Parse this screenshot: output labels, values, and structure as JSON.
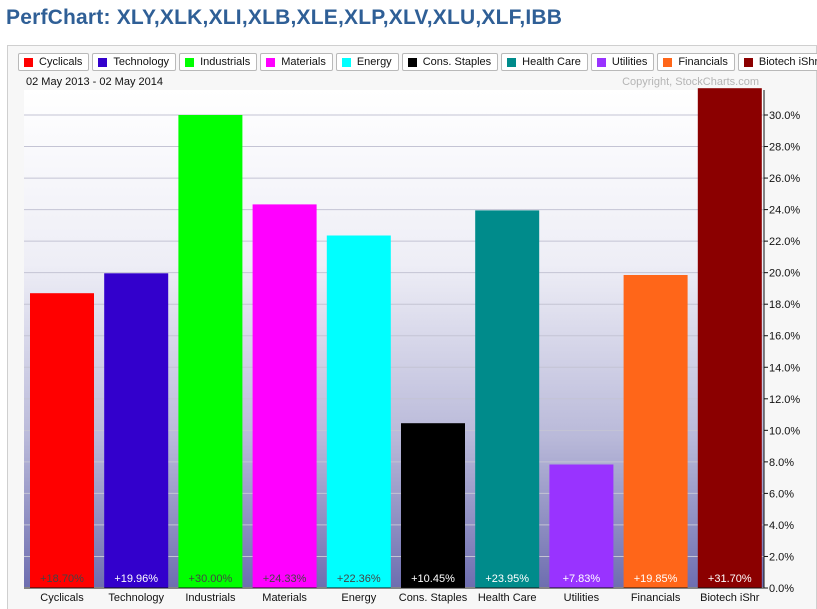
{
  "page": {
    "title": "PerfChart: XLY,XLK,XLI,XLB,XLE,XLP,XLV,XLU,XLF,IBB",
    "date_range": "02 May 2013 - 02 May 2014",
    "copyright": "Copyright, StockCharts.com"
  },
  "legend": [
    {
      "label": "Cyclicals",
      "color": "#ff0000"
    },
    {
      "label": "Technology",
      "color": "#3300cc"
    },
    {
      "label": "Industrials",
      "color": "#00ff00"
    },
    {
      "label": "Materials",
      "color": "#ff00ff"
    },
    {
      "label": "Energy",
      "color": "#00ffff"
    },
    {
      "label": "Cons. Staples",
      "color": "#000000"
    },
    {
      "label": "Health Care",
      "color": "#008b8b"
    },
    {
      "label": "Utilities",
      "color": "#9933ff"
    },
    {
      "label": "Financials",
      "color": "#ff6619"
    },
    {
      "label": "Biotech iShr",
      "color": "#8b0000"
    }
  ],
  "chart_data": {
    "type": "bar",
    "categories": [
      "Cyclicals",
      "Technology",
      "Industrials",
      "Materials",
      "Energy",
      "Cons. Staples",
      "Health Care",
      "Utilities",
      "Financials",
      "Biotech iShr"
    ],
    "values": [
      18.7,
      19.96,
      30.0,
      24.33,
      22.36,
      10.45,
      23.95,
      7.83,
      19.85,
      31.7
    ],
    "data_labels": [
      "+18.70%",
      "+19.96%",
      "+30.00%",
      "+24.33%",
      "+22.36%",
      "+10.45%",
      "+23.95%",
      "+7.83%",
      "+19.85%",
      "+31.70%"
    ],
    "colors": [
      "#ff0000",
      "#3300cc",
      "#00ff00",
      "#ff00ff",
      "#00ffff",
      "#000000",
      "#008b8b",
      "#9933ff",
      "#ff6619",
      "#8b0000"
    ],
    "label_colors": [
      "#444444",
      "#ffffff",
      "#444444",
      "#444444",
      "#444444",
      "#ffffff",
      "#ffffff",
      "#ffffff",
      "#ffffff",
      "#ffffff"
    ],
    "y_ticks": [
      "0.0%",
      "2.0%",
      "4.0%",
      "6.0%",
      "8.0%",
      "10.0%",
      "12.0%",
      "14.0%",
      "16.0%",
      "18.0%",
      "20.0%",
      "22.0%",
      "24.0%",
      "26.0%",
      "28.0%",
      "30.0%"
    ],
    "ylim": [
      0,
      32
    ],
    "y_axis_side": "right",
    "grid": true,
    "legend_position": "top-left"
  }
}
